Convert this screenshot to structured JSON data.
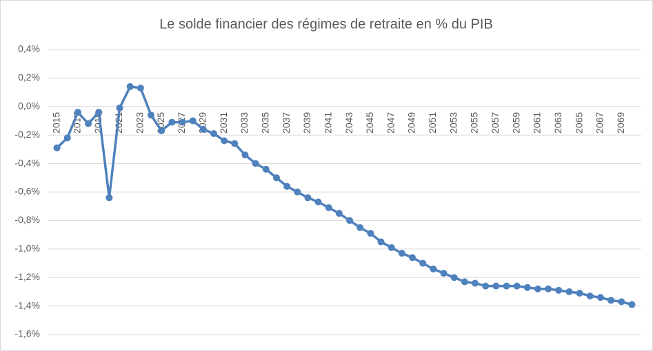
{
  "chart_data": {
    "type": "line",
    "title": "Le solde financier des régimes de retraite en % du PIB",
    "categories": [
      "2015",
      null,
      "2017",
      null,
      "2019",
      null,
      "2021",
      null,
      "2023",
      null,
      "2025",
      null,
      "2027",
      null,
      "2029",
      null,
      "2031",
      null,
      "2033",
      null,
      "2035",
      null,
      "2037",
      null,
      "2039",
      null,
      "2041",
      null,
      "2043",
      null,
      "2045",
      null,
      "2047",
      null,
      "2049",
      null,
      "2051",
      null,
      "2053",
      null,
      "2055",
      null,
      "2057",
      null,
      "2059",
      null,
      "2061",
      null,
      "2063",
      null,
      "2065",
      null,
      "2067",
      null,
      "2069",
      null
    ],
    "values": [
      -0.29,
      -0.22,
      -0.04,
      -0.12,
      -0.04,
      -0.64,
      -0.01,
      0.14,
      0.13,
      -0.06,
      -0.17,
      -0.11,
      -0.11,
      -0.1,
      -0.16,
      -0.19,
      -0.24,
      -0.26,
      -0.34,
      -0.4,
      -0.44,
      -0.5,
      -0.56,
      -0.6,
      -0.64,
      -0.67,
      -0.71,
      -0.75,
      -0.8,
      -0.85,
      -0.89,
      -0.95,
      -0.99,
      -1.03,
      -1.06,
      -1.1,
      -1.14,
      -1.17,
      -1.2,
      -1.23,
      -1.24,
      -1.26,
      -1.26,
      -1.26,
      -1.26,
      -1.27,
      -1.28,
      -1.28,
      -1.29,
      -1.3,
      -1.31,
      -1.33,
      -1.34,
      -1.36,
      -1.37,
      -1.39
    ],
    "color": "#4f81bd",
    "ylim": [
      -1.6,
      0.4
    ],
    "yticks": [
      {
        "value": -1.6,
        "label": "-1,6%"
      },
      {
        "value": -1.4,
        "label": "-1,4%"
      },
      {
        "value": -1.2,
        "label": "-1,2%"
      },
      {
        "value": -1.0,
        "label": "-1,0%"
      },
      {
        "value": -0.8,
        "label": "-0,8%"
      },
      {
        "value": -0.6,
        "label": "-0,6%"
      },
      {
        "value": -0.4,
        "label": "-0,4%"
      },
      {
        "value": -0.2,
        "label": "-0,2%"
      },
      {
        "value": 0,
        "label": "0,0%"
      },
      {
        "value": 0.2,
        "label": "0,2%"
      },
      {
        "value": 0.4,
        "label": "0,4%"
      }
    ],
    "grid": true
  }
}
